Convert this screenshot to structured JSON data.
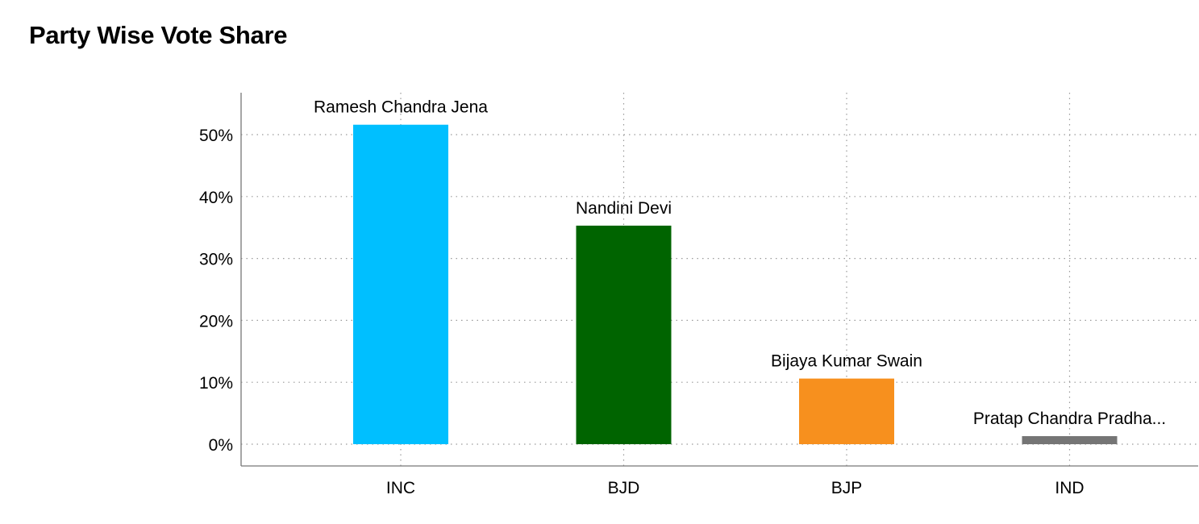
{
  "chart_data": {
    "type": "bar",
    "title": "Party Wise Vote Share",
    "categories": [
      "INC",
      "BJD",
      "BJP",
      "IND"
    ],
    "values": [
      51.6,
      35.3,
      10.6,
      1.3
    ],
    "data_labels": [
      "Ramesh Chandra Jena",
      "Nandini Devi",
      "Bijaya Kumar Swain",
      "Pratap Chandra Pradha..."
    ],
    "colors": [
      "#00BFFF",
      "#006400",
      "#F7901E",
      "#757575"
    ],
    "ylim": [
      0,
      55
    ],
    "yticks": [
      0,
      10,
      20,
      30,
      40,
      50
    ],
    "ytick_labels": [
      "0%",
      "10%",
      "20%",
      "30%",
      "40%",
      "50%"
    ],
    "grid": true,
    "legend": "none"
  }
}
